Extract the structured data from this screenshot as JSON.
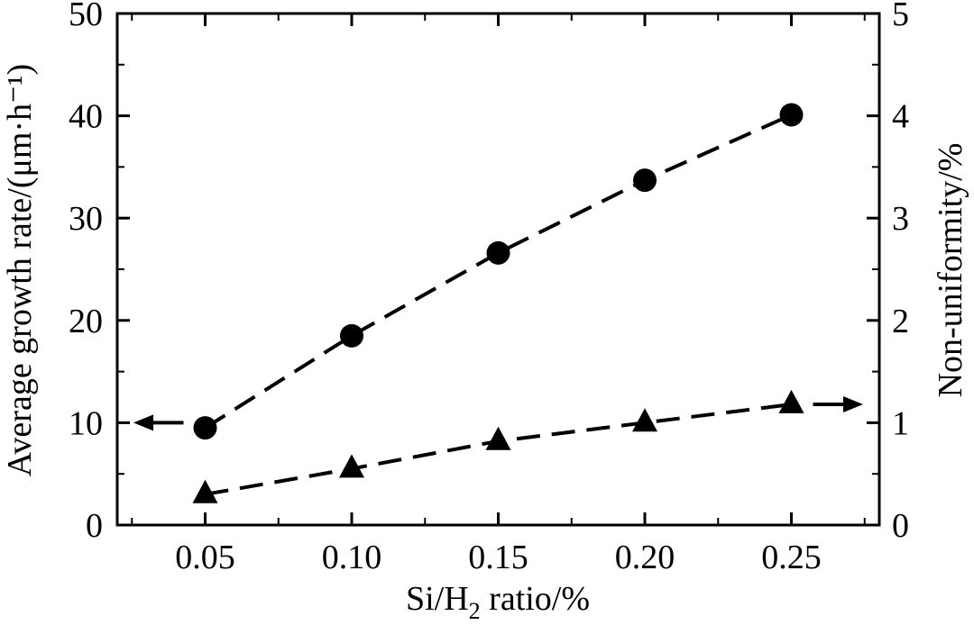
{
  "chart_data": {
    "type": "line",
    "xlabel": "Si/H2 ratio/%",
    "xlabel_main": "Si/H",
    "xlabel_sub": "2",
    "xlabel_tail": " ratio/%",
    "ylabel_left": "Average growth rate/(μm·h⁻¹)",
    "ylabel_right": "Non-uniformity/%",
    "x_ticks": [
      "0.05",
      "0.10",
      "0.15",
      "0.20",
      "0.25"
    ],
    "y_left_ticks": [
      "0",
      "10",
      "20",
      "30",
      "40",
      "50"
    ],
    "y_right_ticks": [
      "0",
      "1",
      "2",
      "3",
      "4",
      "5"
    ],
    "xlim": [
      0.02,
      0.28
    ],
    "ylim_left": [
      0,
      50
    ],
    "ylim_right": [
      0,
      5
    ],
    "x": [
      0.05,
      0.1,
      0.15,
      0.2,
      0.25
    ],
    "series": [
      {
        "marker": "circle",
        "axis": "left",
        "values": [
          9.5,
          18.5,
          26.6,
          33.7,
          40.1
        ]
      },
      {
        "marker": "triangle",
        "axis": "right",
        "values": [
          0.3,
          0.55,
          0.82,
          1.0,
          1.18
        ]
      }
    ],
    "annotations": [
      {
        "type": "arrow",
        "direction": "left",
        "axis": "left",
        "y": 10
      },
      {
        "type": "arrow",
        "direction": "right",
        "axis": "right",
        "y": 1.18
      }
    ],
    "grid": false,
    "line_style": "dashed",
    "color": "#000000"
  }
}
